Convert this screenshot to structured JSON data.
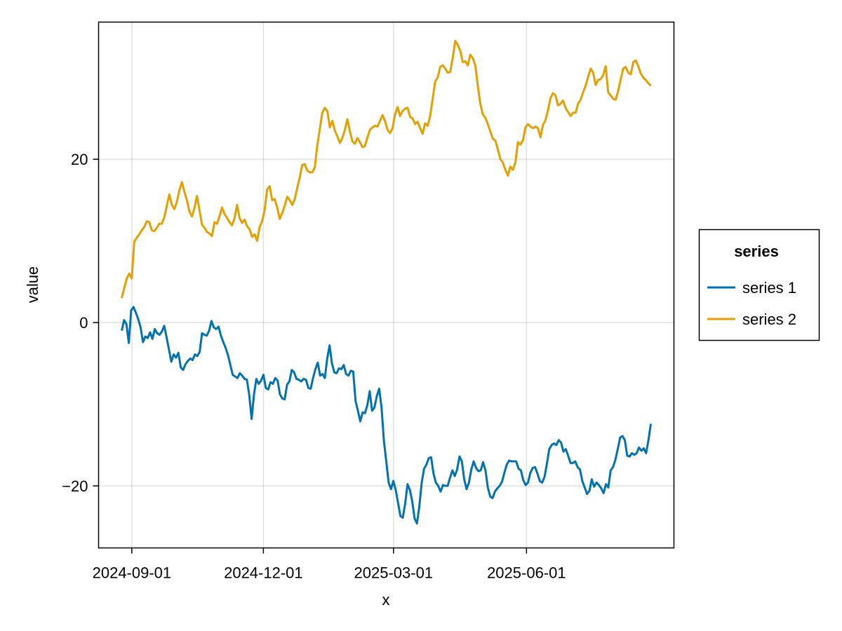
{
  "chart_data": {
    "type": "line",
    "xlabel": "x",
    "ylabel": "value",
    "x_start": "2024-08-25",
    "x_end": "2025-08-26",
    "xlim": [
      "2024-08-09",
      "2025-09-11"
    ],
    "ylim": [
      -27.6,
      36.8
    ],
    "x_ticks": [
      "2024-09-01",
      "2024-12-01",
      "2025-03-01",
      "2025-06-01"
    ],
    "y_ticks": [
      -20,
      0,
      20
    ],
    "y_tick_labels": [
      "−20",
      "0",
      "20"
    ],
    "grid": true,
    "legend": {
      "title": "series",
      "placement": "right"
    },
    "series": [
      {
        "name": "series 1",
        "color": "#0072B2",
        "values": [
          -1.0,
          0.3,
          -0.2,
          -2.5,
          1.5,
          1.9,
          1.2,
          0.4,
          -0.6,
          -2.4,
          -1.7,
          -1.9,
          -1.2,
          -2.0,
          -0.8,
          -1.3,
          -1.5,
          -1.1,
          -0.4,
          -1.8,
          -3.3,
          -4.8,
          -3.9,
          -4.3,
          -3.7,
          -5.5,
          -5.8,
          -5.1,
          -4.7,
          -4.4,
          -4.6,
          -3.9,
          -4.1,
          -3.6,
          -1.3,
          -1.5,
          -1.6,
          -1.0,
          0.2,
          -0.6,
          -0.8,
          -0.5,
          -1.6,
          -2.4,
          -3.1,
          -4.0,
          -5.2,
          -6.4,
          -6.6,
          -6.8,
          -6.2,
          -6.5,
          -6.9,
          -7.0,
          -8.9,
          -11.8,
          -8.8,
          -6.9,
          -7.5,
          -7.1,
          -6.4,
          -8.0,
          -8.2,
          -7.3,
          -7.5,
          -6.8,
          -7.1,
          -8.8,
          -9.3,
          -9.4,
          -7.6,
          -7.2,
          -5.8,
          -6.1,
          -6.9,
          -7.0,
          -7.2,
          -6.9,
          -7.0,
          -8.0,
          -8.1,
          -6.8,
          -5.7,
          -4.9,
          -6.5,
          -6.3,
          -6.8,
          -4.4,
          -2.8,
          -5.0,
          -6.1,
          -6.2,
          -5.6,
          -5.7,
          -5.2,
          -6.3,
          -6.5,
          -5.9,
          -6.0,
          -9.6,
          -10.8,
          -12.1,
          -11.0,
          -11.1,
          -10.1,
          -8.4,
          -10.8,
          -10.4,
          -9.0,
          -8.1,
          -10.4,
          -14.5,
          -17.0,
          -19.6,
          -20.4,
          -19.4,
          -20.5,
          -22.1,
          -23.7,
          -23.9,
          -22.2,
          -19.8,
          -20.5,
          -21.9,
          -24.0,
          -24.6,
          -22.5,
          -19.6,
          -17.9,
          -17.4,
          -16.6,
          -16.5,
          -18.5,
          -19.6,
          -20.0,
          -20.7,
          -19.9,
          -20.0,
          -20.0,
          -19.0,
          -18.1,
          -18.8,
          -18.0,
          -16.4,
          -17.0,
          -19.2,
          -20.4,
          -19.6,
          -18.0,
          -17.0,
          -17.8,
          -18.2,
          -18.1,
          -17.1,
          -18.1,
          -20.2,
          -21.3,
          -21.5,
          -20.7,
          -20.3,
          -20.0,
          -19.5,
          -18.4,
          -17.4,
          -16.9,
          -17.0,
          -17.0,
          -17.0,
          -17.9,
          -18.1,
          -19.3,
          -19.9,
          -19.6,
          -18.4,
          -17.8,
          -17.7,
          -18.5,
          -19.4,
          -19.6,
          -18.9,
          -17.3,
          -15.5,
          -15.0,
          -14.8,
          -15.0,
          -14.4,
          -14.7,
          -15.8,
          -15.5,
          -16.3,
          -17.2,
          -17.2,
          -17.0,
          -17.7,
          -18.0,
          -19.4,
          -20.2,
          -21.0,
          -20.6,
          -19.2,
          -20.1,
          -19.6,
          -19.9,
          -20.3,
          -20.9,
          -19.8,
          -20.2,
          -18.1,
          -17.7,
          -16.8,
          -15.5,
          -14.1,
          -13.9,
          -14.4,
          -16.3,
          -16.4,
          -16.0,
          -16.2,
          -16.0,
          -15.3,
          -15.7,
          -15.4,
          -16.0,
          -14.4,
          -12.4
        ]
      },
      {
        "name": "series 2",
        "color": "#E69F00",
        "values": [
          3.0,
          4.2,
          5.4,
          6.0,
          5.4,
          9.9,
          10.4,
          10.8,
          11.3,
          11.7,
          12.4,
          12.3,
          11.3,
          11.2,
          11.6,
          12.1,
          12.1,
          12.9,
          14.3,
          15.7,
          14.4,
          13.9,
          14.8,
          16.2,
          17.2,
          16.0,
          15.0,
          13.6,
          13.0,
          14.0,
          15.5,
          13.8,
          12.0,
          11.6,
          11.1,
          10.9,
          10.6,
          12.3,
          12.1,
          13.0,
          14.1,
          13.3,
          12.8,
          12.3,
          11.9,
          12.8,
          14.4,
          12.8,
          12.2,
          12.6,
          11.8,
          11.4,
          10.5,
          10.8,
          10.0,
          11.7,
          12.4,
          13.8,
          16.3,
          16.7,
          15.0,
          15.1,
          14.1,
          12.7,
          13.4,
          14.3,
          15.4,
          15.0,
          14.4,
          15.1,
          16.5,
          17.8,
          19.3,
          19.4,
          18.6,
          18.4,
          18.4,
          19.0,
          21.7,
          23.7,
          25.7,
          26.3,
          25.9,
          23.9,
          24.7,
          23.5,
          22.8,
          22.0,
          22.6,
          23.6,
          24.9,
          23.4,
          22.2,
          21.9,
          22.6,
          22.1,
          21.5,
          21.6,
          22.7,
          23.6,
          23.9,
          24.1,
          24.0,
          24.7,
          25.4,
          24.7,
          23.6,
          23.2,
          23.8,
          25.5,
          26.4,
          25.3,
          25.9,
          26.2,
          26.3,
          25.2,
          25.0,
          24.3,
          24.6,
          23.8,
          23.1,
          24.4,
          24.1,
          25.3,
          27.4,
          29.5,
          30.0,
          31.3,
          31.5,
          31.1,
          30.6,
          30.7,
          32.4,
          34.5,
          34.0,
          33.3,
          31.9,
          32.0,
          31.5,
          32.8,
          32.4,
          31.5,
          29.0,
          26.8,
          25.5,
          25.1,
          24.3,
          23.4,
          22.5,
          22.3,
          21.2,
          20.0,
          19.6,
          18.7,
          18.0,
          19.1,
          18.7,
          19.6,
          22.1,
          21.8,
          22.3,
          23.9,
          24.3,
          24.0,
          23.8,
          24.0,
          23.8,
          22.7,
          24.2,
          24.8,
          26.0,
          27.5,
          28.1,
          27.8,
          26.6,
          26.8,
          27.2,
          26.3,
          25.8,
          25.3,
          25.7,
          25.7,
          26.8,
          27.3,
          28.2,
          29.0,
          30.1,
          31.1,
          30.6,
          29.1,
          29.7,
          29.8,
          30.3,
          31.4,
          28.2,
          27.8,
          27.4,
          27.3,
          28.4,
          29.8,
          31.1,
          31.3,
          30.6,
          30.4,
          31.9,
          32.1,
          31.4,
          30.5,
          30.0,
          29.7,
          29.3,
          29.0
        ]
      }
    ]
  }
}
